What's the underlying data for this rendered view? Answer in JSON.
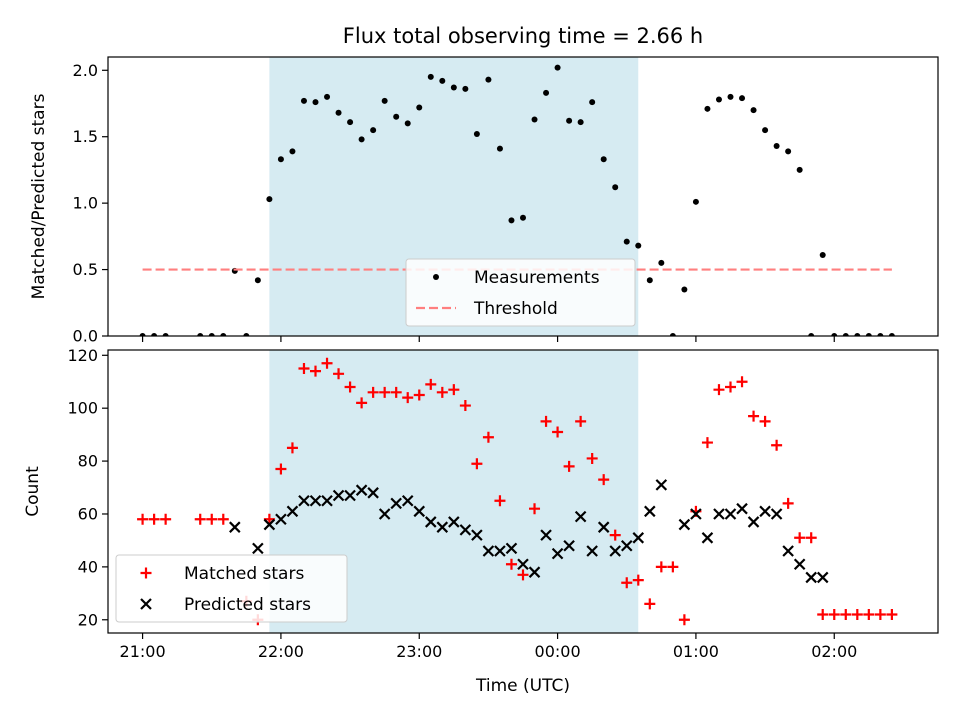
{
  "chart_data": [
    {
      "type": "scatter",
      "title": "Flux total observing time = 2.66 h",
      "xlabel": "",
      "ylabel": "Matched/Predicted stars",
      "x_ticks": [
        "21:00",
        "22:00",
        "23:00",
        "00:00",
        "01:00",
        "02:00"
      ],
      "xlim": [
        "20:45",
        "02:45"
      ],
      "ylim": [
        0,
        2.1
      ],
      "y_ticks": [
        "0.0",
        "0.5",
        "1.0",
        "1.5",
        "2.0"
      ],
      "grid": false,
      "legend": {
        "placement": "bottom-center",
        "entries": [
          "Measurements",
          "Threshold"
        ]
      },
      "shaded_region": {
        "x_start": "21:55",
        "x_end": "00:35",
        "color": "#add8e6"
      },
      "series": [
        {
          "name": "Measurements",
          "marker": "dot",
          "color": "#000000",
          "x": [
            "21:00",
            "21:05",
            "21:10",
            "21:25",
            "21:30",
            "21:35",
            "21:40",
            "21:45",
            "21:50",
            "21:55",
            "22:00",
            "22:05",
            "22:10",
            "22:15",
            "22:20",
            "22:25",
            "22:30",
            "22:35",
            "22:40",
            "22:45",
            "22:50",
            "22:55",
            "23:00",
            "23:05",
            "23:10",
            "23:15",
            "23:20",
            "23:25",
            "23:30",
            "23:35",
            "23:40",
            "23:45",
            "23:50",
            "23:55",
            "00:00",
            "00:05",
            "00:10",
            "00:15",
            "00:20",
            "00:25",
            "00:30",
            "00:35",
            "00:40",
            "00:45",
            "00:50",
            "00:55",
            "01:00",
            "01:05",
            "01:10",
            "01:15",
            "01:20",
            "01:25",
            "01:30",
            "01:35",
            "01:40",
            "01:45",
            "01:50",
            "01:55",
            "02:00",
            "02:05",
            "02:10",
            "02:15",
            "02:20",
            "02:25"
          ],
          "y": [
            0,
            0,
            0,
            0,
            0,
            0,
            0.49,
            0,
            0.42,
            1.03,
            1.33,
            1.39,
            1.77,
            1.76,
            1.8,
            1.68,
            1.61,
            1.48,
            1.55,
            1.77,
            1.65,
            1.6,
            1.72,
            1.95,
            1.92,
            1.87,
            1.86,
            1.52,
            1.93,
            1.41,
            0.87,
            0.89,
            1.63,
            1.83,
            2.02,
            1.62,
            1.61,
            1.76,
            1.33,
            1.12,
            0.71,
            0.68,
            0.42,
            0.55,
            0,
            0.35,
            1.01,
            1.71,
            1.78,
            1.8,
            1.79,
            1.7,
            1.55,
            1.43,
            1.39,
            1.25,
            0,
            0.61,
            0,
            0,
            0,
            0,
            0,
            0
          ]
        },
        {
          "name": "Threshold",
          "marker": "dashed-line",
          "color": "#ff7f7f",
          "x": [
            "21:00",
            "02:25"
          ],
          "y": [
            0.5,
            0.5
          ]
        }
      ]
    },
    {
      "type": "scatter",
      "title": "",
      "xlabel": "Time (UTC)",
      "ylabel": "Count",
      "x_ticks": [
        "21:00",
        "22:00",
        "23:00",
        "00:00",
        "01:00",
        "02:00"
      ],
      "xlim": [
        "20:45",
        "02:45"
      ],
      "ylim": [
        15,
        122
      ],
      "y_ticks": [
        "20",
        "40",
        "60",
        "80",
        "100",
        "120"
      ],
      "grid": false,
      "legend": {
        "placement": "bottom-left",
        "entries": [
          "Matched stars",
          "Predicted stars"
        ]
      },
      "shaded_region": {
        "x_start": "21:55",
        "x_end": "00:35",
        "color": "#add8e6"
      },
      "series": [
        {
          "name": "Matched stars",
          "marker": "plus",
          "color": "#ff0000",
          "x": [
            "21:00",
            "21:05",
            "21:10",
            "21:25",
            "21:30",
            "21:35",
            "21:45",
            "21:50",
            "21:55",
            "22:00",
            "22:05",
            "22:10",
            "22:15",
            "22:20",
            "22:25",
            "22:30",
            "22:35",
            "22:40",
            "22:45",
            "22:50",
            "22:55",
            "23:00",
            "23:05",
            "23:10",
            "23:15",
            "23:20",
            "23:25",
            "23:30",
            "23:35",
            "23:40",
            "23:45",
            "23:50",
            "23:55",
            "00:00",
            "00:05",
            "00:10",
            "00:15",
            "00:20",
            "00:25",
            "00:30",
            "00:35",
            "00:40",
            "00:45",
            "00:50",
            "00:55",
            "01:00",
            "01:05",
            "01:10",
            "01:15",
            "01:20",
            "01:25",
            "01:30",
            "01:35",
            "01:40",
            "01:45",
            "01:50",
            "01:55",
            "02:00",
            "02:05",
            "02:10",
            "02:15",
            "02:20",
            "02:25"
          ],
          "y": [
            58,
            58,
            58,
            58,
            58,
            58,
            27,
            20,
            58,
            77,
            85,
            115,
            114,
            117,
            113,
            108,
            102,
            106,
            106,
            106,
            104,
            105,
            109,
            106,
            107,
            101,
            79,
            89,
            65,
            41,
            37,
            62,
            95,
            91,
            78,
            95,
            81,
            73,
            52,
            34,
            35,
            26,
            40,
            40,
            20,
            61,
            87,
            107,
            108,
            110,
            97,
            95,
            86,
            64,
            51,
            51,
            22,
            22,
            22,
            22,
            22,
            22,
            22
          ]
        },
        {
          "name": "Predicted stars",
          "marker": "x",
          "color": "#000000",
          "x": [
            "21:40",
            "21:50",
            "21:55",
            "22:00",
            "22:05",
            "22:10",
            "22:15",
            "22:20",
            "22:25",
            "22:30",
            "22:35",
            "22:40",
            "22:45",
            "22:50",
            "22:55",
            "23:00",
            "23:05",
            "23:10",
            "23:15",
            "23:20",
            "23:25",
            "23:30",
            "23:35",
            "23:40",
            "23:45",
            "23:50",
            "23:55",
            "00:00",
            "00:05",
            "00:10",
            "00:15",
            "00:20",
            "00:25",
            "00:30",
            "00:35",
            "00:40",
            "00:45",
            "00:55",
            "01:00",
            "01:05",
            "01:10",
            "01:15",
            "01:20",
            "01:25",
            "01:30",
            "01:35",
            "01:40",
            "01:45",
            "01:50",
            "01:55"
          ],
          "y": [
            55,
            47,
            56,
            58,
            61,
            65,
            65,
            65,
            67,
            67,
            69,
            68,
            60,
            64,
            65,
            61,
            57,
            55,
            57,
            54,
            52,
            46,
            46,
            47,
            41,
            38,
            52,
            45,
            48,
            59,
            46,
            55,
            46,
            48,
            51,
            61,
            71,
            56,
            60,
            51,
            60,
            60,
            62,
            57,
            61,
            60,
            46,
            41,
            36,
            36
          ]
        }
      ]
    }
  ]
}
